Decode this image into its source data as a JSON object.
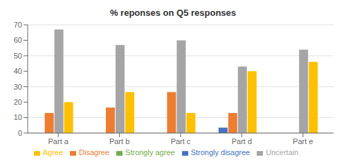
{
  "chart_data": {
    "type": "bar",
    "title": "% reponses on Q5 responses",
    "categories": [
      "Part a",
      "Part b",
      "Part c",
      "Part d",
      "Part e"
    ],
    "series": [
      {
        "name": "Strongly disagree",
        "color": "#4472C4",
        "values": [
          0,
          0,
          0,
          3.5,
          0
        ]
      },
      {
        "name": "Disagree",
        "color": "#ED7D31",
        "values": [
          13,
          16.5,
          26.5,
          13,
          0
        ]
      },
      {
        "name": "Uncertain",
        "color": "#A5A5A5",
        "values": [
          67,
          57,
          60,
          43,
          54
        ]
      },
      {
        "name": "Agree",
        "color": "#FFC000",
        "values": [
          20,
          26.5,
          13,
          40,
          46
        ]
      },
      {
        "name": "Strongly agree",
        "color": "#70AD47",
        "values": [
          0,
          0,
          0,
          0,
          0
        ]
      }
    ],
    "ylim": [
      0,
      70
    ],
    "yticks": [
      0,
      10,
      20,
      30,
      40,
      50,
      60,
      70
    ],
    "grid": true,
    "legend": "bottom"
  }
}
